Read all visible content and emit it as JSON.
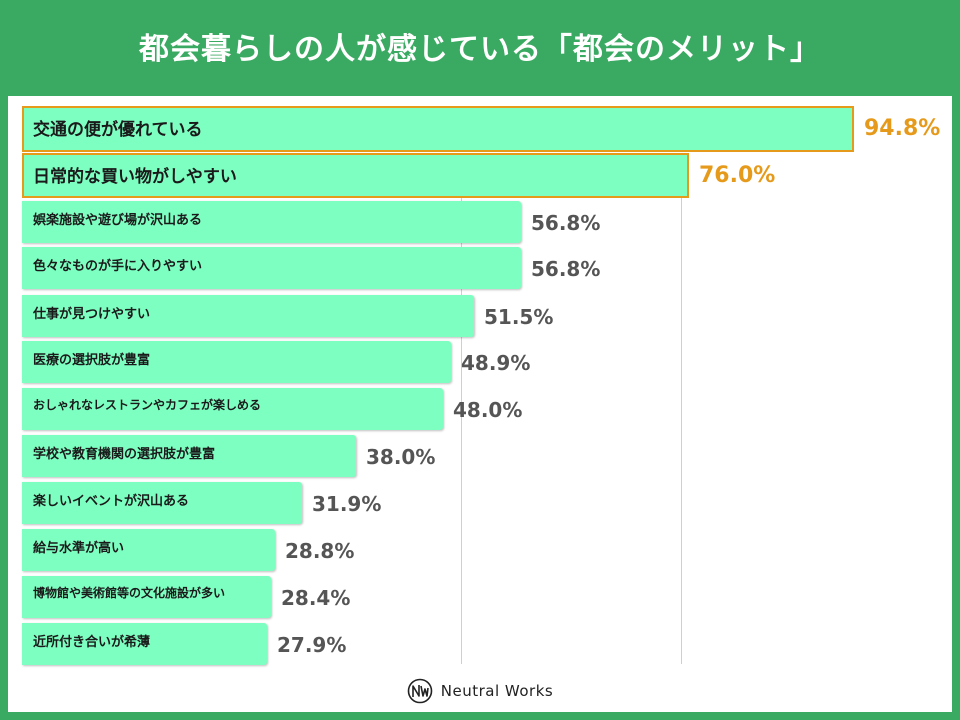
{
  "header": {
    "title": "都会暮らしの人が感じている「都会のメリット」"
  },
  "chart_data": {
    "type": "bar",
    "orientation": "horizontal",
    "title": "都会暮らしの人が感じている「都会のメリット」",
    "unit": "%",
    "xlim": [
      0,
      100
    ],
    "categories": [
      "交通の便が優れている",
      "日常的な買い物がしやすい",
      "娯楽施設や遊び場が沢山ある",
      "色々なものが手に入りやすい",
      "仕事が見つけやすい",
      "医療の選択肢が豊富",
      "おしゃれなレストランやカフェが楽しめる",
      "学校や教育機関の選択肢が豊富",
      "楽しいイベントが沢山ある",
      "給与水準が高い",
      "博物館や美術館等の文化施設が多い",
      "近所付き合いが希薄"
    ],
    "values": [
      94.8,
      76.0,
      56.8,
      56.8,
      51.5,
      48.9,
      48.0,
      38.0,
      31.9,
      28.8,
      28.4,
      27.9
    ],
    "labels": [
      "94.8%",
      "76.0%",
      "56.8%",
      "56.8%",
      "51.5%",
      "48.9%",
      "48.0%",
      "38.0%",
      "31.9%",
      "28.8%",
      "28.4%",
      "27.9%"
    ],
    "highlighted": [
      0,
      1
    ],
    "highlight_color": "#e69a1b",
    "bar_color": "#7dffc2"
  },
  "footer": {
    "brand": "Neutral Works"
  }
}
